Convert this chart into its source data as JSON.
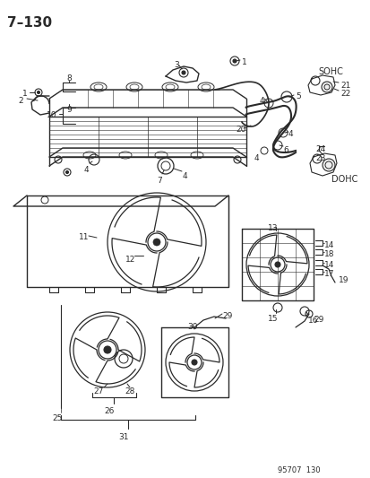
{
  "title": "7–130",
  "page_code": "95707  130",
  "bg_color": "#ffffff",
  "lc": "#2a2a2a",
  "figsize": [
    4.14,
    5.33
  ],
  "dpi": 100
}
